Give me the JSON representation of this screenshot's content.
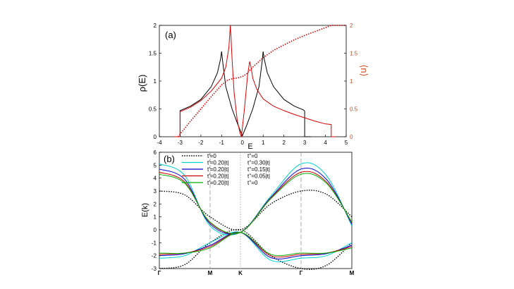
{
  "chart_data": [
    {
      "type": "line",
      "panel_label": "(a)",
      "xlabel": "E",
      "ylabel": "ρ(E)",
      "y2label": "⟨n⟩",
      "xlim": [
        -4,
        5
      ],
      "ylim": [
        0,
        2
      ],
      "y2lim": [
        0,
        2
      ],
      "xticks": [
        "-4",
        "-3",
        "-2",
        "-1",
        "0",
        "1",
        "2",
        "3",
        "4",
        "5"
      ],
      "yticks": [
        "0",
        "0.5",
        "1",
        "1.5",
        "2"
      ],
      "y2ticks": [
        "0",
        "0.5",
        "1",
        "1.5",
        "2"
      ],
      "colors": {
        "black": "#000000",
        "red": "#d40000",
        "n_axis": "#d24a1c"
      },
      "series": [
        {
          "name": "black DOS",
          "color": "#000000",
          "style": "solid",
          "x": [
            -3.3,
            -3.0,
            -3.0,
            -2.5,
            -2.0,
            -1.5,
            -1.2,
            -1.05,
            -1.0,
            -0.95,
            -0.8,
            -0.5,
            -0.2,
            0.0,
            0.2,
            0.5,
            0.8,
            0.95,
            1.0,
            1.05,
            1.2,
            1.5,
            2.0,
            2.5,
            2.95,
            3.0,
            3.0,
            3.3
          ],
          "y": [
            0,
            0,
            0.47,
            0.55,
            0.67,
            0.9,
            1.15,
            1.4,
            1.53,
            1.35,
            0.9,
            0.5,
            0.2,
            0.02,
            0.2,
            0.5,
            0.9,
            1.35,
            1.53,
            1.4,
            1.15,
            0.9,
            0.67,
            0.55,
            0.48,
            0.46,
            0,
            0
          ]
        },
        {
          "name": "red DOS",
          "color": "#d40000",
          "style": "solid",
          "x": [
            -3.3,
            -3.0,
            -3.0,
            -2.5,
            -2.0,
            -1.5,
            -1.0,
            -0.8,
            -0.65,
            -0.58,
            -0.55,
            -0.5,
            -0.4,
            -0.25,
            -0.12,
            -0.05,
            0.1,
            0.25,
            0.35,
            0.42,
            0.5,
            0.7,
            1.0,
            1.5,
            2.0,
            2.5,
            3.0,
            3.5,
            4.0,
            4.28,
            4.28,
            4.5
          ],
          "y": [
            0,
            0,
            0.45,
            0.53,
            0.65,
            0.82,
            1.05,
            1.25,
            1.6,
            2.0,
            1.8,
            1.4,
            0.8,
            0.3,
            0.08,
            0.0,
            0.5,
            1.1,
            1.35,
            1.25,
            1.05,
            0.85,
            0.68,
            0.55,
            0.47,
            0.4,
            0.34,
            0.28,
            0.23,
            0.22,
            0,
            0
          ]
        },
        {
          "name": "red ⟨n⟩",
          "color": "#d40000",
          "style": "dotted",
          "x": [
            -3.1,
            -2.5,
            -2.0,
            -1.5,
            -1.0,
            -0.7,
            -0.5,
            -0.2,
            0.0,
            0.2,
            0.5,
            1.0,
            1.5,
            2.0,
            2.5,
            3.0,
            3.5,
            4.0,
            4.28,
            5.0
          ],
          "y": [
            0,
            0.28,
            0.5,
            0.72,
            0.93,
            1.02,
            1.04,
            1.06,
            1.08,
            1.13,
            1.25,
            1.42,
            1.55,
            1.65,
            1.74,
            1.82,
            1.89,
            1.96,
            2.0,
            2.0
          ]
        }
      ]
    },
    {
      "type": "line",
      "panel_label": "(b)",
      "ylabel": "E(k)",
      "ylim": [
        -3,
        6
      ],
      "yticks": [
        "-3",
        "-2",
        "-1",
        "0",
        "1",
        "2",
        "3",
        "4",
        "5",
        "6"
      ],
      "xticks": [
        "Γ",
        "M",
        "K",
        "Γ",
        "M"
      ],
      "legend_col1": [
        "t'=0",
        "t'=0.20|t|",
        "t'=0.20|t|",
        "t'=0.20|t|",
        "t'=0.20|t|"
      ],
      "legend_col2": [
        "t''=0",
        "t''=0.30|t|",
        "t''=0.15|t|",
        "t''=0.05|t|",
        "t''=0"
      ],
      "series": [
        {
          "name": "t'=0 t''=0",
          "color": "#000000",
          "style": "dotted",
          "upper": [
            3.0,
            2.7,
            1.0,
            0.0,
            2.0,
            3.0,
            2.75,
            1.0
          ],
          "lower": [
            -3.0,
            -2.7,
            -1.0,
            0.0,
            -2.0,
            -3.0,
            -2.75,
            -1.0
          ]
        },
        {
          "name": "t'=0.20|t| t''=0.30|t|",
          "color": "#00d0d0",
          "style": "solid",
          "upper": [
            5.1,
            4.2,
            0.3,
            -0.2,
            2.6,
            5.1,
            4.2,
            0.3
          ],
          "lower": [
            -2.2,
            -2.0,
            -1.0,
            -0.2,
            -2.35,
            -2.2,
            -2.0,
            -1.0
          ]
        },
        {
          "name": "t'=0.20|t| t''=0.15|t|",
          "color": "#0000cc",
          "style": "solid",
          "upper": [
            4.7,
            3.9,
            0.45,
            -0.2,
            2.5,
            4.7,
            3.9,
            0.45
          ],
          "lower": [
            -2.0,
            -1.85,
            -1.2,
            -0.2,
            -2.15,
            -2.0,
            -1.85,
            -1.2
          ]
        },
        {
          "name": "t'=0.20|t| t''=0.05|t|",
          "color": "#cc0000",
          "style": "solid",
          "upper": [
            4.45,
            3.7,
            0.55,
            -0.2,
            2.45,
            4.45,
            3.7,
            0.55
          ],
          "lower": [
            -1.9,
            -1.8,
            -1.3,
            -0.2,
            -2.0,
            -1.9,
            -1.8,
            -1.3
          ]
        },
        {
          "name": "t'=0.20|t| t''=0",
          "color": "#00b000",
          "style": "solid",
          "upper": [
            4.3,
            3.6,
            0.6,
            -0.2,
            2.4,
            4.3,
            3.6,
            0.6
          ],
          "lower": [
            -1.8,
            -1.8,
            -1.4,
            -0.2,
            -1.9,
            -1.8,
            -1.8,
            -1.4
          ]
        }
      ]
    }
  ]
}
